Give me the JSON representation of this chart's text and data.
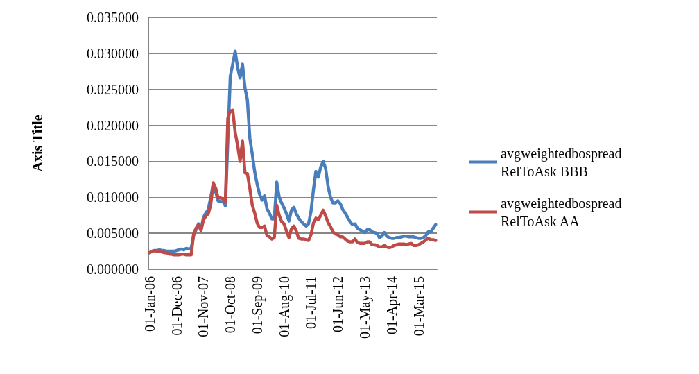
{
  "chart_data": {
    "type": "line",
    "ylabel": "Axis Title",
    "categories": [
      "01-Jan-06",
      null,
      null,
      null,
      null,
      null,
      null,
      null,
      null,
      null,
      null,
      "01-Dec-06",
      null,
      null,
      null,
      null,
      null,
      null,
      null,
      null,
      null,
      null,
      "01-Nov-07",
      null,
      null,
      null,
      null,
      null,
      null,
      null,
      null,
      null,
      null,
      "01-Oct-08",
      null,
      null,
      null,
      null,
      null,
      null,
      null,
      null,
      null,
      null,
      "01-Sep-09",
      null,
      null,
      null,
      null,
      null,
      null,
      null,
      null,
      null,
      null,
      "01-Aug-10",
      null,
      null,
      null,
      null,
      null,
      null,
      null,
      null,
      null,
      null,
      "01-Jul-11",
      null,
      null,
      null,
      null,
      null,
      null,
      null,
      null,
      null,
      null,
      "01-Jun-12",
      null,
      null,
      null,
      null,
      null,
      null,
      null,
      null,
      null,
      null,
      "01-May-13",
      null,
      null,
      null,
      null,
      null,
      null,
      null,
      null,
      null,
      null,
      "01-Apr-14",
      null,
      null,
      null,
      null,
      null,
      null,
      null,
      null,
      null,
      null,
      "01-Mar-15",
      null,
      null,
      null,
      null,
      null,
      null,
      null
    ],
    "series": [
      {
        "name": "avgweightedbospread RelToAsk BBB",
        "color": "#4a7ebb",
        "values": [
          0.0023,
          0.0025,
          0.0026,
          0.0026,
          0.0027,
          0.0026,
          0.0026,
          0.0025,
          0.0025,
          0.0025,
          0.0025,
          0.0026,
          0.0027,
          0.0028,
          0.0027,
          0.0029,
          0.0028,
          0.0029,
          0.0047,
          0.0055,
          0.0063,
          0.0054,
          0.0072,
          0.0078,
          0.0083,
          0.01,
          0.0117,
          0.0108,
          0.0095,
          0.0094,
          0.0094,
          0.0088,
          0.018,
          0.0268,
          0.0285,
          0.0303,
          0.028,
          0.0266,
          0.0285,
          0.0252,
          0.0235,
          0.0182,
          0.016,
          0.0135,
          0.0118,
          0.0104,
          0.0096,
          0.0102,
          0.0084,
          0.0078,
          0.007,
          0.007,
          0.0121,
          0.01,
          0.0092,
          0.0085,
          0.0077,
          0.0067,
          0.0082,
          0.0086,
          0.0077,
          0.0071,
          0.0066,
          0.0063,
          0.006,
          0.0063,
          0.008,
          0.011,
          0.0136,
          0.0128,
          0.0142,
          0.015,
          0.014,
          0.0115,
          0.01,
          0.0092,
          0.0092,
          0.0095,
          0.0091,
          0.0083,
          0.0078,
          0.0072,
          0.0066,
          0.0062,
          0.0063,
          0.0057,
          0.0055,
          0.0053,
          0.0051,
          0.0055,
          0.0055,
          0.0052,
          0.0051,
          0.005,
          0.0044,
          0.0046,
          0.0051,
          0.0046,
          0.0044,
          0.0043,
          0.0043,
          0.0044,
          0.0044,
          0.0045,
          0.0046,
          0.0046,
          0.0045,
          0.0045,
          0.0045,
          0.0044,
          0.0043,
          0.0043,
          0.0044,
          0.0047,
          0.0052,
          0.0052,
          0.0057,
          0.0062
        ]
      },
      {
        "name": "avgweightedbospread RelToAsk AA",
        "color": "#be4b48",
        "values": [
          0.0023,
          0.0025,
          0.0026,
          0.0025,
          0.0025,
          0.0024,
          0.0023,
          0.0023,
          0.0021,
          0.0021,
          0.002,
          0.002,
          0.002,
          0.0021,
          0.0021,
          0.002,
          0.002,
          0.002,
          0.0049,
          0.0057,
          0.0062,
          0.0054,
          0.0068,
          0.0074,
          0.0077,
          0.009,
          0.012,
          0.0113,
          0.0099,
          0.0099,
          0.0098,
          0.0094,
          0.021,
          0.022,
          0.0221,
          0.019,
          0.0172,
          0.015,
          0.0178,
          0.0134,
          0.0133,
          0.0112,
          0.0089,
          0.0078,
          0.0064,
          0.0058,
          0.0058,
          0.006,
          0.0047,
          0.0045,
          0.0042,
          0.0044,
          0.0089,
          0.0075,
          0.0066,
          0.0063,
          0.0053,
          0.0044,
          0.0056,
          0.006,
          0.0053,
          0.0043,
          0.0042,
          0.0042,
          0.0041,
          0.004,
          0.0048,
          0.0064,
          0.0071,
          0.0069,
          0.0075,
          0.0082,
          0.0074,
          0.0065,
          0.0059,
          0.0052,
          0.0049,
          0.0048,
          0.0045,
          0.0045,
          0.0042,
          0.0039,
          0.0038,
          0.0038,
          0.0042,
          0.0037,
          0.0036,
          0.0036,
          0.0036,
          0.0038,
          0.0038,
          0.0034,
          0.0034,
          0.0033,
          0.0031,
          0.0031,
          0.0033,
          0.0031,
          0.003,
          0.0031,
          0.0033,
          0.0034,
          0.0035,
          0.0035,
          0.0035,
          0.0034,
          0.0035,
          0.0036,
          0.0033,
          0.0033,
          0.0034,
          0.0036,
          0.0038,
          0.0041,
          0.0043,
          0.0041,
          0.0041,
          0.004
        ]
      }
    ],
    "ylim": [
      0,
      0.035
    ],
    "yticks": [
      {
        "value": 0,
        "label": "0.000000"
      },
      {
        "value": 0.005,
        "label": "0.005000"
      },
      {
        "value": 0.01,
        "label": "0.010000"
      },
      {
        "value": 0.015,
        "label": "0.015000"
      },
      {
        "value": 0.02,
        "label": "0.020000"
      },
      {
        "value": 0.025,
        "label": "0.025000"
      },
      {
        "value": 0.03,
        "label": "0.030000"
      },
      {
        "value": 0.035,
        "label": "0.035000"
      }
    ],
    "grid": "y",
    "legend": "right",
    "marker": "none",
    "line_style": "solid"
  }
}
